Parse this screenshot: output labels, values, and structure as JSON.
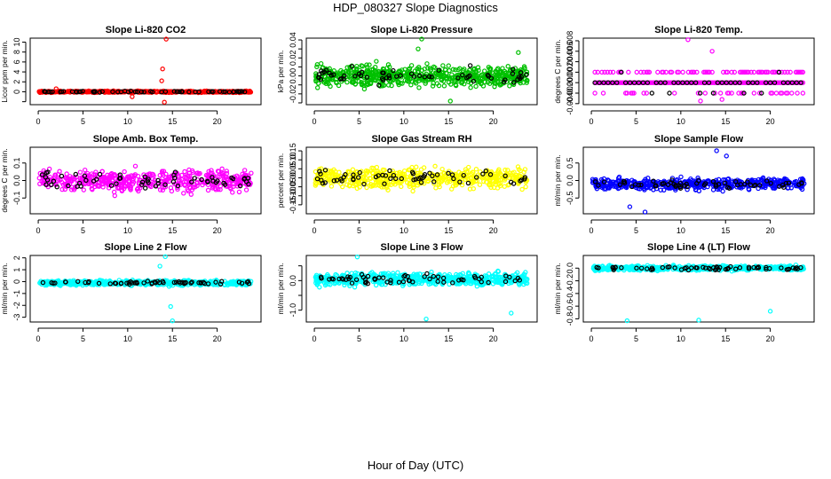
{
  "figure_title": "HDP_080327  Slope Diagnostics",
  "x_axis_title": "Hour of Day (UTC)",
  "chart_data": [
    {
      "type": "scatter",
      "title": "Slope Li-820 CO2",
      "ylabel": "Licor ppm per min.",
      "ylim": [
        -2.6,
        10.8
      ],
      "yticks": [
        -2,
        0,
        2,
        4,
        6,
        8,
        10
      ],
      "ytick_labels": [
        "",
        "0",
        "2",
        "4",
        "6",
        "8",
        "10"
      ],
      "xlim": [
        -0.9,
        24.9
      ],
      "xticks": [
        0,
        5,
        10,
        15,
        20
      ],
      "colors": {
        "all": "#ff0000",
        "hourly": "#000000"
      },
      "n_points": 520,
      "base": 0.0,
      "spread": 0.15,
      "extra_points": [
        {
          "x": 13.8,
          "y": 2.2
        },
        {
          "x": 13.9,
          "y": 4.6
        },
        {
          "x": 14.3,
          "y": 10.6
        },
        {
          "x": 14.1,
          "y": -2.1
        },
        {
          "x": 10.5,
          "y": -1.0
        },
        {
          "x": 2.0,
          "y": 0.6
        }
      ]
    },
    {
      "type": "scatter",
      "title": "Slope Li-820 Pressure",
      "ylabel": "kPa per min.",
      "ylim": [
        -0.032,
        0.042
      ],
      "yticks": [
        -0.03,
        -0.02,
        -0.01,
        0.0,
        0.01,
        0.02,
        0.03,
        0.04
      ],
      "ytick_labels": [
        "",
        "-0.02",
        "",
        "0.00",
        "",
        "0.02",
        "",
        "0.04"
      ],
      "xlim": [
        -0.9,
        24.9
      ],
      "xticks": [
        0,
        5,
        10,
        15,
        20
      ],
      "colors": {
        "all": "#00c000",
        "hourly": "#000000"
      },
      "n_points": 620,
      "base": 0.0,
      "spread": 0.011,
      "extra_points": [
        {
          "x": 12.0,
          "y": 0.041
        },
        {
          "x": 11.6,
          "y": 0.03
        },
        {
          "x": 15.2,
          "y": -0.028
        },
        {
          "x": 22.8,
          "y": 0.026
        }
      ]
    },
    {
      "type": "scatter",
      "title": "Slope Li-820 Temp.",
      "ylabel": "degrees C per min.",
      "ylim": [
        -0.0042,
        0.0085
      ],
      "yticks": [
        -0.004,
        -0.002,
        0.0,
        0.002,
        0.004,
        0.006,
        0.008
      ],
      "ytick_labels": [
        "-0.004",
        "-0.002",
        "0.000",
        "0.002",
        "0.004",
        "0.006",
        "0.008"
      ],
      "xlim": [
        -0.9,
        24.9
      ],
      "xticks": [
        0,
        5,
        10,
        15,
        20
      ],
      "colors": {
        "all": "#ff00ff",
        "hourly": "#000000"
      },
      "levels": [
        0.0,
        0.002,
        -0.002
      ],
      "extra_points": [
        {
          "x": 10.8,
          "y": 0.0082
        },
        {
          "x": 12.2,
          "y": -0.0035
        },
        {
          "x": 13.5,
          "y": 0.006
        },
        {
          "x": 14.6,
          "y": -0.0032
        }
      ]
    },
    {
      "type": "scatter",
      "title": "Slope Amb. Box Temp.",
      "ylabel": "degrees C per min.",
      "ylim": [
        -0.19,
        0.19
      ],
      "yticks": [
        -0.1,
        0.0,
        0.1
      ],
      "ytick_labels": [
        "-0.1",
        "0.0",
        "0.1"
      ],
      "xlim": [
        -0.9,
        24.9
      ],
      "xticks": [
        0,
        5,
        10,
        15,
        20
      ],
      "colors": {
        "all": "#ff00ff",
        "hourly": "#000000"
      },
      "n_points": 480,
      "base": 0.0,
      "spread": 0.06,
      "extra_points": []
    },
    {
      "type": "scatter",
      "title": "Slope Gas Stream RH",
      "ylabel": "percent per min.",
      "ylim": [
        -0.2,
        0.17
      ],
      "yticks": [
        -0.15,
        -0.1,
        -0.05,
        0.0,
        0.05,
        0.1,
        0.15
      ],
      "ytick_labels": [
        "-0.15",
        "-0.10",
        "-0.05",
        "0.00",
        "0.05",
        "0.10",
        "0.15"
      ],
      "xlim": [
        -0.9,
        24.9
      ],
      "xticks": [
        0,
        5,
        10,
        15,
        20
      ],
      "colors": {
        "all": "#ffff00",
        "hourly": "#000000"
      },
      "n_points": 520,
      "base": 0.0,
      "spread": 0.055,
      "extra_points": []
    },
    {
      "type": "scatter",
      "title": "Slope Sample Flow",
      "ylabel": "ml/min per min.",
      "ylim": [
        -0.95,
        0.95
      ],
      "yticks": [
        -0.5,
        0.0,
        0.5
      ],
      "ytick_labels": [
        "-0.5",
        "0.0",
        "0.5"
      ],
      "xlim": [
        -0.9,
        24.9
      ],
      "xticks": [
        0,
        5,
        10,
        15,
        20
      ],
      "colors": {
        "all": "#0000ff",
        "hourly": "#000000"
      },
      "n_points": 520,
      "base": -0.1,
      "spread": 0.15,
      "extra_points": [
        {
          "x": 14.0,
          "y": 0.85
        },
        {
          "x": 15.1,
          "y": 0.7
        },
        {
          "x": 4.3,
          "y": -0.75
        },
        {
          "x": 6.0,
          "y": -0.9
        }
      ]
    },
    {
      "type": "scatter",
      "title": "Slope Line 2 Flow",
      "ylabel": "ml/min per min.",
      "ylim": [
        -3.4,
        2.2
      ],
      "yticks": [
        -3,
        -2,
        -1,
        0,
        1,
        2
      ],
      "ytick_labels": [
        "-3",
        "-2",
        "-1",
        "0",
        "1",
        "2"
      ],
      "xlim": [
        -0.9,
        24.9
      ],
      "xticks": [
        0,
        5,
        10,
        15,
        20
      ],
      "colors": {
        "all": "#00ffff",
        "hourly": "#000000"
      },
      "n_points": 520,
      "base": -0.1,
      "spread": 0.2,
      "extra_points": [
        {
          "x": 14.2,
          "y": 2.1
        },
        {
          "x": 14.8,
          "y": -2.1
        },
        {
          "x": 15.0,
          "y": -3.3
        },
        {
          "x": 13.6,
          "y": 1.3
        }
      ]
    },
    {
      "type": "scatter",
      "title": "Slope Line 3 Flow",
      "ylabel": "ml/min per min.",
      "ylim": [
        -1.4,
        0.85
      ],
      "yticks": [
        -1.0,
        -0.5,
        0.0,
        0.5
      ],
      "ytick_labels": [
        "-1.0",
        "",
        "0.0",
        ""
      ],
      "xlim": [
        -0.9,
        24.9
      ],
      "xticks": [
        0,
        5,
        10,
        15,
        20
      ],
      "colors": {
        "all": "#00ffff",
        "hourly": "#000000"
      },
      "n_points": 560,
      "base": 0.05,
      "spread": 0.2,
      "extra_points": [
        {
          "x": 12.5,
          "y": -1.3
        },
        {
          "x": 22.0,
          "y": -1.1
        },
        {
          "x": 4.8,
          "y": 0.8
        }
      ]
    },
    {
      "type": "scatter",
      "title": "Slope Line 4 (LT) Flow",
      "ylabel": "ml/min per min.",
      "ylim": [
        -0.85,
        0.2
      ],
      "yticks": [
        -0.8,
        -0.6,
        -0.4,
        -0.2,
        0.0
      ],
      "ytick_labels": [
        "-0.8",
        "-0.6",
        "-0.4",
        "-0.2",
        "0.0"
      ],
      "xlim": [
        -0.9,
        24.9
      ],
      "xticks": [
        0,
        5,
        10,
        15,
        20
      ],
      "colors": {
        "all": "#00ffff",
        "hourly": "#000000"
      },
      "n_points": 480,
      "base": 0.0,
      "spread": 0.035,
      "extra_points": [
        {
          "x": 4.0,
          "y": -0.83
        },
        {
          "x": 12.0,
          "y": -0.82
        },
        {
          "x": 20.0,
          "y": -0.68
        }
      ]
    }
  ]
}
